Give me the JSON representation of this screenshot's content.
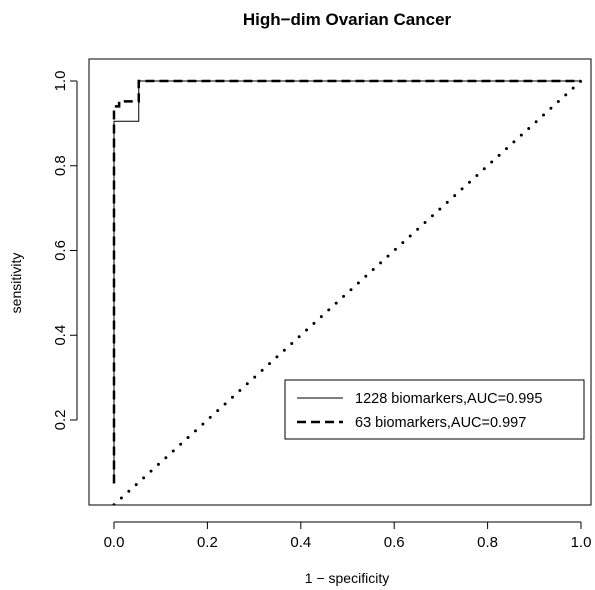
{
  "chart_data": {
    "type": "line",
    "title": "High−dim Ovarian Cancer",
    "xlabel": "1 − specificity",
    "ylabel": "sensitivity",
    "xlim": [
      0.0,
      1.0
    ],
    "ylim": [
      0.02,
      1.0
    ],
    "x_ticks": [
      "0.0",
      "0.2",
      "0.4",
      "0.6",
      "0.8",
      "1.0"
    ],
    "y_ticks": [
      "0.2",
      "0.4",
      "0.6",
      "0.8",
      "1.0"
    ],
    "grid": false,
    "legend_position": "bottom-right",
    "series": [
      {
        "name": "1228 biomarkers,AUC=0.995",
        "line_style": "solid",
        "x": [
          0.0,
          0.0,
          0.0,
          0.053,
          0.053,
          1.0
        ],
        "y": [
          0.05,
          0.905,
          0.905,
          0.905,
          1.0,
          1.0
        ]
      },
      {
        "name": "63 biomarkers,AUC=0.997",
        "line_style": "dashed",
        "x": [
          0.0,
          0.0,
          0.011,
          0.011,
          0.032,
          0.032,
          0.053,
          0.053,
          1.0
        ],
        "y": [
          0.05,
          0.94,
          0.94,
          0.952,
          0.952,
          0.952,
          0.952,
          1.0,
          1.0
        ]
      },
      {
        "name": "",
        "line_style": "dotted",
        "x": [
          0.0,
          1.0
        ],
        "y": [
          0.0,
          1.0
        ]
      }
    ]
  }
}
